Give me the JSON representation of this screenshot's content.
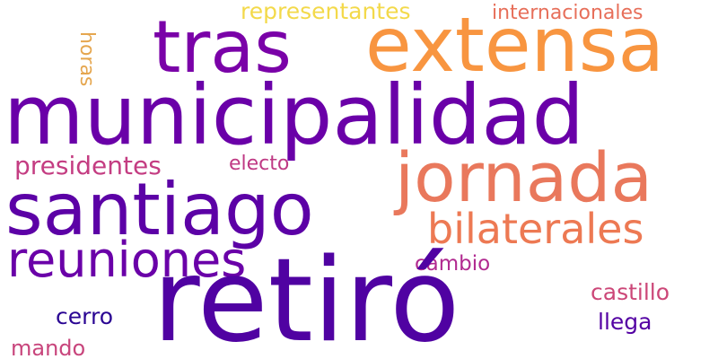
{
  "words": {
    "municipalidad": {
      "text": "municipalidad",
      "color": "#6a00a8"
    },
    "retiro": {
      "text": "retiró",
      "color": "#5002a2"
    },
    "santiago": {
      "text": "santiago",
      "color": "#5c01a6"
    },
    "tras": {
      "text": "tras",
      "color": "#7a02a8"
    },
    "extensa": {
      "text": "extensa",
      "color": "#f89540"
    },
    "jornada": {
      "text": "jornada",
      "color": "#e9785c"
    },
    "reuniones": {
      "text": "reuniones",
      "color": "#6a00a8"
    },
    "bilaterales": {
      "text": "bilaterales",
      "color": "#ed7953"
    },
    "representantes": {
      "text": "representantes",
      "color": "#f3d94a"
    },
    "internacionales": {
      "text": "internacionales",
      "color": "#e76f5a"
    },
    "presidentes": {
      "text": "presidentes",
      "color": "#c43d82"
    },
    "electo": {
      "text": "electo",
      "color": "#bf3984"
    },
    "horas": {
      "text": "horas",
      "color": "#e5a64f"
    },
    "cambio": {
      "text": "cambio",
      "color": "#b12a90"
    },
    "castillo": {
      "text": "castillo",
      "color": "#cc4778"
    },
    "cerro": {
      "text": "cerro",
      "color": "#2a0593"
    },
    "llega": {
      "text": "llega",
      "color": "#5402a3"
    },
    "mando": {
      "text": "mando",
      "color": "#c8457c"
    }
  }
}
